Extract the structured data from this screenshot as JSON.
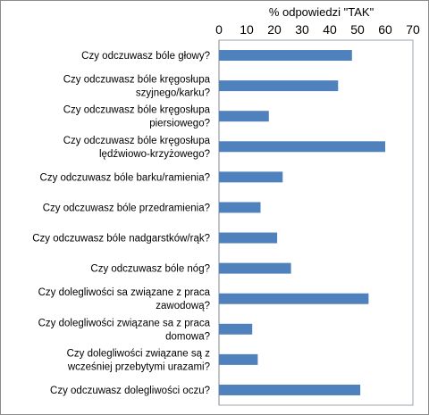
{
  "chart_data": {
    "type": "bar",
    "orientation": "horizontal",
    "axis_position": "top",
    "xlabel": "% odpowiedzi \"TAK\"",
    "xlim": [
      0,
      70
    ],
    "xticks": [
      0,
      10,
      20,
      30,
      40,
      50,
      60,
      70
    ],
    "grid": false,
    "legend": "none",
    "bar_color": "#4f81bd",
    "categories": [
      [
        "Czy odczuwasz bóle głowy?"
      ],
      [
        "Czy odczuwasz bóle kręgosłupa",
        "szyjnego/karku?"
      ],
      [
        "Czy odczuwasz bóle kręgosłupa",
        "piersiowego?"
      ],
      [
        "Czy odczuwasz bóle kręgosłupa",
        "lędźwiowo-krzyżowego?"
      ],
      [
        "Czy odczuwasz bóle barku/ramienia?"
      ],
      [
        "Czy odczuwasz bóle przedramienia?"
      ],
      [
        "Czy odczuwasz bóle nadgarstków/rąk?"
      ],
      [
        "Czy odczuwasz bóle nóg?"
      ],
      [
        "Czy dolegliwości sa związane z praca",
        "zawodową?"
      ],
      [
        "Czy dolegliwości związane sa z praca",
        "domowa?"
      ],
      [
        "Czy dolegliwości związane są z",
        "wcześniej przebytymi urazami?"
      ],
      [
        "Czy odczuwasz dolegliwości oczu?"
      ]
    ],
    "values": [
      48,
      43,
      18,
      60,
      23,
      15,
      21,
      26,
      54,
      12,
      14,
      51
    ]
  }
}
